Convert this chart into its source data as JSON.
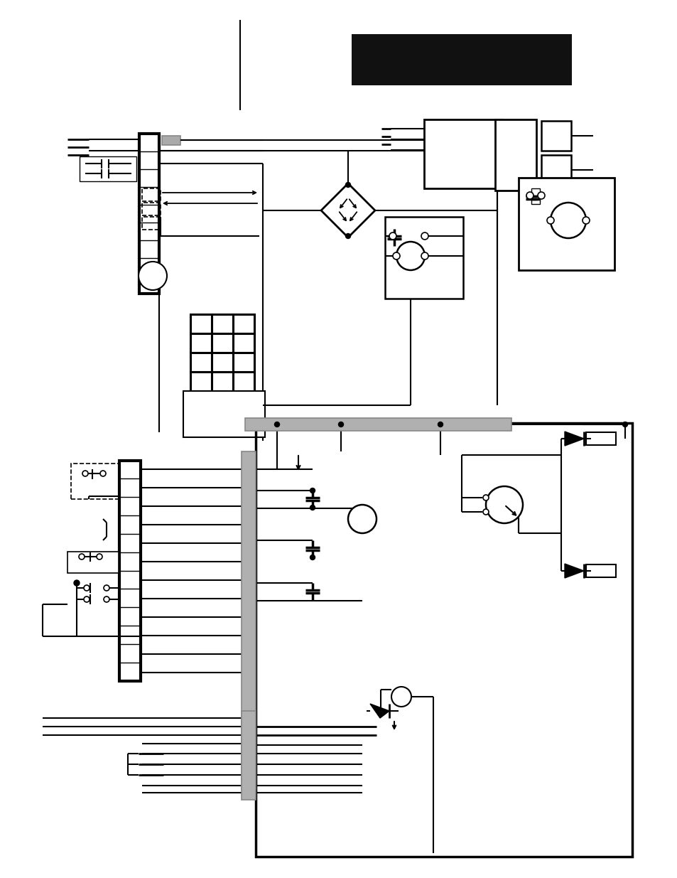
{
  "bg_color": "#ffffff",
  "fig_width": 9.54,
  "fig_height": 12.35
}
